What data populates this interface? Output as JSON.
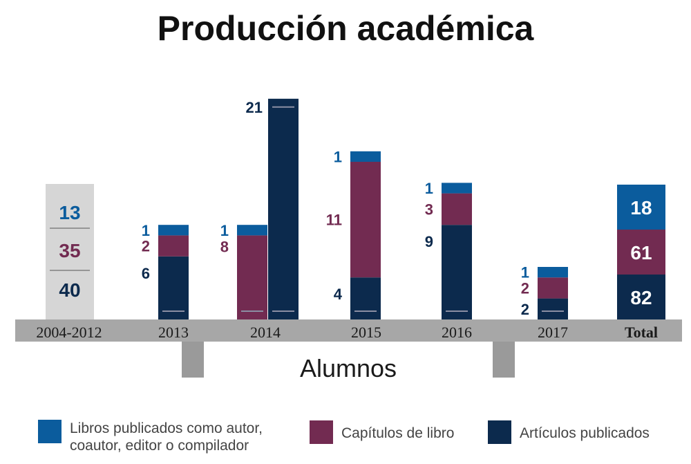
{
  "title": "Producción académica",
  "colors": {
    "libros": "#0b5c9d",
    "capitulos": "#722b51",
    "articulos": "#0c2a4d",
    "baseline_bar": "#a7a7a7",
    "prior_box": "#d6d6d6",
    "support": "#9a9a9a"
  },
  "chart_data": {
    "type": "bar",
    "stacked": true,
    "title": "Producción académica",
    "xlabel": "Alumnos",
    "ylabel": "",
    "categories": [
      "2004-2012",
      "2013",
      "2014",
      "2015",
      "2016",
      "2017",
      "Total"
    ],
    "series": [
      {
        "name": "Libros publicados como autor, coautor, editor o compilador",
        "values": [
          13,
          1,
          1,
          1,
          1,
          1,
          18
        ]
      },
      {
        "name": "Capítulos de libro",
        "values": [
          35,
          2,
          8,
          11,
          3,
          2,
          61
        ]
      },
      {
        "name": "Artículos publicados",
        "values": [
          40,
          6,
          21,
          4,
          9,
          2,
          82
        ]
      }
    ],
    "notes": "2004-2012 is shown as a summary box without bars; in 2014 the 21 Artículos publicados are drawn as a separate tall bar next to the Libros/Capítulos stack; Total is a summary box with values.",
    "legend_position": "bottom"
  },
  "legend": [
    {
      "key": "libros",
      "lines": [
        "Libros publicados como autor,",
        "coautor, editor o compilador"
      ]
    },
    {
      "key": "capitulos",
      "lines": [
        "Capítulos de libro"
      ]
    },
    {
      "key": "articulos",
      "lines": [
        "Artículos publicados"
      ]
    }
  ]
}
